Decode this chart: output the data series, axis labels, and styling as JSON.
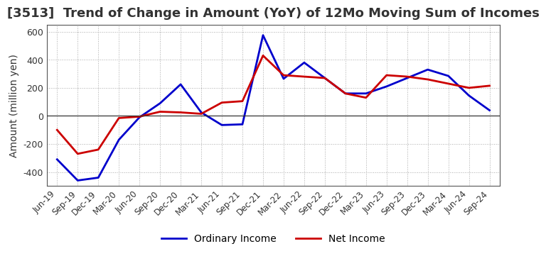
{
  "title": "[3513]  Trend of Change in Amount (YoY) of 12Mo Moving Sum of Incomes",
  "ylabel": "Amount (million yen)",
  "x_labels": [
    "Jun-19",
    "Sep-19",
    "Dec-19",
    "Mar-20",
    "Jun-20",
    "Sep-20",
    "Dec-20",
    "Mar-21",
    "Jun-21",
    "Sep-21",
    "Dec-21",
    "Mar-22",
    "Jun-22",
    "Sep-22",
    "Dec-22",
    "Mar-23",
    "Jun-23",
    "Sep-23",
    "Dec-23",
    "Mar-24",
    "Jun-24",
    "Sep-24"
  ],
  "ordinary_income": [
    -310,
    -460,
    -440,
    -170,
    -10,
    90,
    225,
    25,
    -65,
    -60,
    575,
    265,
    380,
    270,
    160,
    160,
    210,
    270,
    330,
    285,
    145,
    40
  ],
  "net_income": [
    -100,
    -270,
    -240,
    -15,
    -5,
    30,
    25,
    15,
    95,
    105,
    430,
    290,
    280,
    270,
    160,
    130,
    290,
    280,
    260,
    230,
    200,
    215
  ],
  "ordinary_color": "#0000cc",
  "net_color": "#cc0000",
  "ylim_min": -500,
  "ylim_max": 650,
  "yticks": [
    -400,
    -200,
    0,
    200,
    400,
    600
  ],
  "background_color": "#ffffff",
  "grid_color": "#aaaaaa",
  "title_fontsize": 13,
  "axis_fontsize": 10,
  "legend_fontsize": 10,
  "line_width": 2.0
}
